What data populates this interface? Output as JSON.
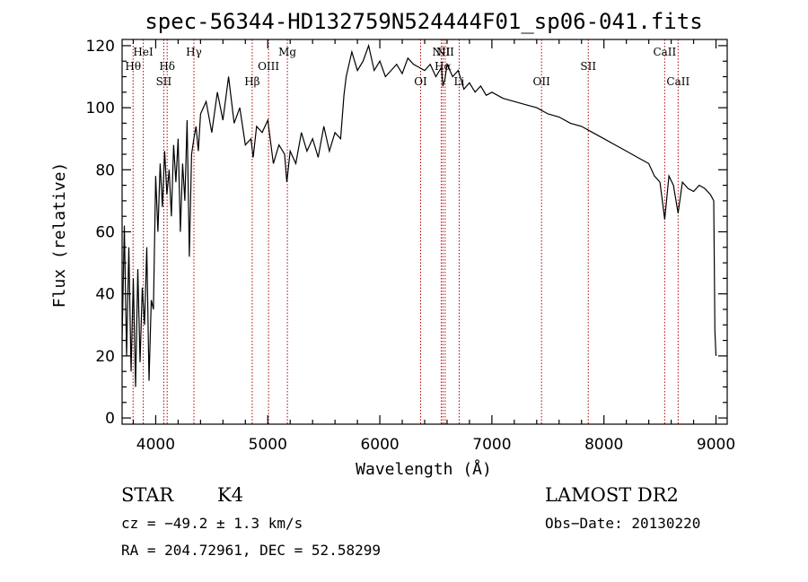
{
  "chart_data": {
    "type": "line",
    "title": "spec-56344-HD132759N524444F01_sp06-041.fits",
    "xlabel": "Wavelength (Å)",
    "ylabel": "Flux (relative)",
    "xlim": [
      3700,
      9100
    ],
    "ylim": [
      -2,
      122
    ],
    "xticks": [
      4000,
      5000,
      6000,
      7000,
      8000,
      9000
    ],
    "yticks": [
      0,
      20,
      40,
      60,
      80,
      100,
      120
    ],
    "grid": false,
    "series": [
      {
        "x": [
          3700,
          3720,
          3740,
          3760,
          3780,
          3800,
          3820,
          3840,
          3860,
          3880,
          3900,
          3920,
          3940,
          3960,
          3980,
          4000,
          4020,
          4040,
          4060,
          4080,
          4100,
          4120,
          4140,
          4160,
          4180,
          4200,
          4220,
          4240,
          4260,
          4280,
          4300,
          4320,
          4340,
          4360,
          4380,
          4400,
          4450,
          4500,
          4550,
          4600,
          4650,
          4700,
          4750,
          4800,
          4850,
          4870,
          4900,
          4950,
          5000,
          5050,
          5100,
          5150,
          5170,
          5200,
          5250,
          5300,
          5350,
          5400,
          5450,
          5500,
          5550,
          5600,
          5650,
          5680,
          5700,
          5750,
          5800,
          5850,
          5900,
          5950,
          6000,
          6050,
          6100,
          6150,
          6200,
          6250,
          6300,
          6350,
          6400,
          6450,
          6500,
          6550,
          6563,
          6580,
          6600,
          6650,
          6700,
          6750,
          6800,
          6850,
          6900,
          6950,
          7000,
          7100,
          7200,
          7300,
          7400,
          7500,
          7600,
          7700,
          7800,
          7900,
          8000,
          8100,
          8200,
          8300,
          8400,
          8450,
          8500,
          8542,
          8580,
          8620,
          8662,
          8700,
          8750,
          8800,
          8850,
          8900,
          8950,
          8980,
          8990,
          9000
        ],
        "values": [
          25,
          62,
          20,
          55,
          15,
          45,
          10,
          48,
          18,
          42,
          30,
          55,
          12,
          38,
          35,
          78,
          60,
          82,
          68,
          86,
          72,
          80,
          65,
          88,
          76,
          90,
          60,
          82,
          70,
          96,
          52,
          85,
          90,
          94,
          86,
          98,
          102,
          92,
          105,
          96,
          110,
          95,
          100,
          88,
          90,
          84,
          94,
          92,
          96,
          82,
          88,
          85,
          76,
          86,
          82,
          92,
          86,
          90,
          84,
          94,
          86,
          92,
          90,
          104,
          110,
          118,
          112,
          115,
          120,
          112,
          115,
          110,
          112,
          114,
          111,
          116,
          114,
          113,
          112,
          114,
          110,
          113,
          107,
          109,
          114,
          110,
          112,
          106,
          108,
          105,
          107,
          104,
          105,
          103,
          102,
          101,
          100,
          98,
          97,
          95,
          94,
          92,
          90,
          88,
          86,
          84,
          82,
          78,
          76,
          64,
          78,
          75,
          66,
          76,
          74,
          73,
          75,
          74,
          72,
          70,
          28,
          20
        ]
      }
    ],
    "lines": [
      {
        "wl": 3798,
        "label": "Hθ",
        "row": 2
      },
      {
        "wl": 3889,
        "label": "HeI",
        "row": 1
      },
      {
        "wl": 4072,
        "label": "SII",
        "row": 3
      },
      {
        "wl": 4102,
        "label": "Hδ",
        "row": 2
      },
      {
        "wl": 4341,
        "label": "Hγ",
        "row": 1
      },
      {
        "wl": 4861,
        "label": "Hβ",
        "row": 3
      },
      {
        "wl": 5007,
        "label": "OIII",
        "row": 2
      },
      {
        "wl": 5175,
        "label": "Mg",
        "row": 1
      },
      {
        "wl": 6364,
        "label": "OI",
        "row": 3
      },
      {
        "wl": 6548,
        "label": "NII",
        "row": 1
      },
      {
        "wl": 6563,
        "label": "Hα",
        "row": 2
      },
      {
        "wl": 6583,
        "label": "NII",
        "row": 1
      },
      {
        "wl": 6708,
        "label": "Li",
        "row": 3
      },
      {
        "wl": 7443,
        "label": "OII",
        "row": 3
      },
      {
        "wl": 7860,
        "label": "SII",
        "row": 2
      },
      {
        "wl": 8542,
        "label": "CaII",
        "row": 1
      },
      {
        "wl": 8662,
        "label": "CaII",
        "row": 3
      }
    ],
    "line_color": "#b00000"
  },
  "info": {
    "object_type": "STAR",
    "subclass": "K4",
    "survey": "LAMOST DR2",
    "cz": "cz = −49.2 ± 1.3 km/s",
    "obs_date": "Obs−Date: 20130220",
    "coords": "RA = 204.72961, DEC =  52.58299"
  }
}
